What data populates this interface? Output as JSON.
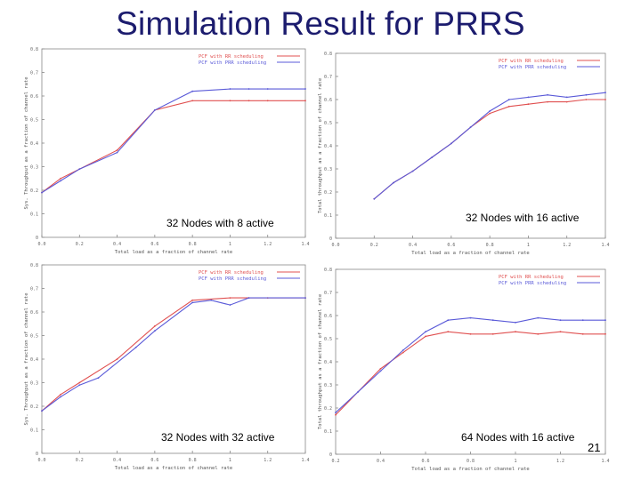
{
  "slide": {
    "title": "Simulation Result for PRRS",
    "page_number": "21"
  },
  "colors": {
    "title": "#1c1c6e",
    "series_1": "#e05050",
    "series_2": "#5a5ad8",
    "axis": "#888888"
  },
  "chart_data": [
    {
      "type": "line",
      "caption": "32 Nodes with 8 active",
      "xlabel": "Total load as a fraction of channel rate",
      "ylabel": "Sys. Throughput as a fraction of channel rate",
      "xlim": [
        0.0,
        1.4
      ],
      "ylim": [
        0,
        0.8
      ],
      "xticks": [
        "0.0",
        "0.2",
        "0.4",
        "0.6",
        "0.8",
        "1",
        "1.2",
        "1.4"
      ],
      "yticks": [
        "0",
        "0.1",
        "0.2",
        "0.3",
        "0.4",
        "0.5",
        "0.6",
        "0.7",
        "0.8"
      ],
      "legend_position": "top-right",
      "series": [
        {
          "name": "PCF with RR scheduling",
          "color": "#e05050",
          "x": [
            0.0,
            0.1,
            0.2,
            0.4,
            0.6,
            0.8,
            1.0,
            1.1,
            1.2,
            1.4
          ],
          "y": [
            0.19,
            0.25,
            0.29,
            0.37,
            0.54,
            0.58,
            0.58,
            0.58,
            0.58,
            0.58
          ]
        },
        {
          "name": "PCF with PRR scheduling",
          "color": "#5a5ad8",
          "x": [
            0.0,
            0.1,
            0.2,
            0.4,
            0.6,
            0.8,
            1.0,
            1.1,
            1.2,
            1.4
          ],
          "y": [
            0.19,
            0.24,
            0.29,
            0.36,
            0.54,
            0.62,
            0.63,
            0.63,
            0.63,
            0.63
          ]
        }
      ]
    },
    {
      "type": "line",
      "caption": "32 Nodes with 16 active",
      "xlabel": "Total load as a fraction of channel rate",
      "ylabel": "Total throughput as a fraction of channel rate",
      "xlim": [
        0.0,
        1.4
      ],
      "ylim": [
        0,
        0.8
      ],
      "xticks": [
        "0.0",
        "0.2",
        "0.4",
        "0.6",
        "0.8",
        "1",
        "1.2",
        "1.4"
      ],
      "yticks": [
        "0",
        "0.1",
        "0.2",
        "0.3",
        "0.4",
        "0.5",
        "0.6",
        "0.7",
        "0.8"
      ],
      "legend_position": "top-right",
      "series": [
        {
          "name": "PCF with RR scheduling",
          "color": "#e05050",
          "x": [
            0.2,
            0.3,
            0.4,
            0.5,
            0.6,
            0.7,
            0.8,
            0.9,
            1.0,
            1.1,
            1.2,
            1.3,
            1.4
          ],
          "y": [
            0.17,
            0.24,
            0.29,
            0.35,
            0.41,
            0.48,
            0.54,
            0.57,
            0.58,
            0.59,
            0.59,
            0.6,
            0.6
          ]
        },
        {
          "name": "PCF with PRR scheduling",
          "color": "#5a5ad8",
          "x": [
            0.2,
            0.3,
            0.4,
            0.5,
            0.6,
            0.7,
            0.8,
            0.9,
            1.0,
            1.1,
            1.2,
            1.3,
            1.4
          ],
          "y": [
            0.17,
            0.24,
            0.29,
            0.35,
            0.41,
            0.48,
            0.55,
            0.6,
            0.61,
            0.62,
            0.61,
            0.62,
            0.63
          ]
        }
      ]
    },
    {
      "type": "line",
      "caption": "32 Nodes with 32 active",
      "xlabel": "Total load as a fraction of channel rate",
      "ylabel": "Sys. Throughput as a fraction of channel rate",
      "xlim": [
        0.0,
        1.4
      ],
      "ylim": [
        0,
        0.8
      ],
      "xticks": [
        "0.0",
        "0.2",
        "0.4",
        "0.6",
        "0.8",
        "1",
        "1.2",
        "1.4"
      ],
      "yticks": [
        "0",
        "0.1",
        "0.2",
        "0.3",
        "0.4",
        "0.5",
        "0.6",
        "0.7",
        "0.8"
      ],
      "legend_position": "top-right",
      "series": [
        {
          "name": "PCF with RR scheduling",
          "color": "#e05050",
          "x": [
            0.0,
            0.1,
            0.2,
            0.4,
            0.6,
            0.8,
            1.0,
            1.1,
            1.2,
            1.4
          ],
          "y": [
            0.18,
            0.25,
            0.3,
            0.4,
            0.54,
            0.65,
            0.66,
            0.66,
            0.66,
            0.66
          ]
        },
        {
          "name": "PCF with PRR scheduling",
          "color": "#5a5ad8",
          "x": [
            0.0,
            0.1,
            0.2,
            0.3,
            0.5,
            0.6,
            0.8,
            0.9,
            1.0,
            1.1,
            1.4
          ],
          "y": [
            0.18,
            0.24,
            0.29,
            0.32,
            0.45,
            0.52,
            0.64,
            0.65,
            0.63,
            0.66,
            0.66
          ]
        }
      ]
    },
    {
      "type": "line",
      "caption": "64 Nodes with 16 active",
      "xlabel": "Total load as a fraction of channel rate",
      "ylabel": "Total throughput as a fraction of channel rate",
      "xlim": [
        0.2,
        1.4
      ],
      "ylim": [
        0,
        0.8
      ],
      "xticks": [
        "0.2",
        "0.4",
        "0.6",
        "0.8",
        "1",
        "1.2",
        "1.4"
      ],
      "yticks": [
        "0",
        "0.1",
        "0.2",
        "0.3",
        "0.4",
        "0.5",
        "0.6",
        "0.7",
        "0.8"
      ],
      "legend_position": "top-right",
      "series": [
        {
          "name": "PCF with RR scheduling",
          "color": "#e05050",
          "x": [
            0.2,
            0.3,
            0.4,
            0.5,
            0.6,
            0.7,
            0.8,
            0.9,
            1.0,
            1.1,
            1.2,
            1.3,
            1.4
          ],
          "y": [
            0.17,
            0.27,
            0.37,
            0.44,
            0.51,
            0.53,
            0.52,
            0.52,
            0.53,
            0.52,
            0.53,
            0.52,
            0.52
          ]
        },
        {
          "name": "PCF with PRR scheduling",
          "color": "#5a5ad8",
          "x": [
            0.2,
            0.3,
            0.4,
            0.5,
            0.6,
            0.7,
            0.8,
            0.9,
            1.0,
            1.1,
            1.2,
            1.3,
            1.4
          ],
          "y": [
            0.18,
            0.27,
            0.36,
            0.45,
            0.53,
            0.58,
            0.59,
            0.58,
            0.57,
            0.59,
            0.58,
            0.58,
            0.58
          ]
        }
      ]
    }
  ]
}
